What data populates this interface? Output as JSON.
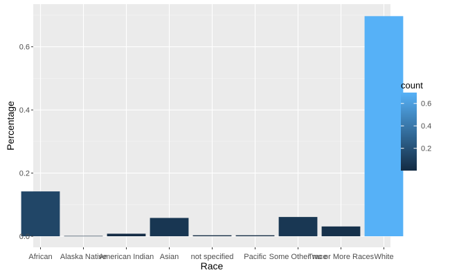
{
  "chart_data": {
    "type": "bar",
    "xlabel": "Race",
    "ylabel": "Percentage",
    "categories": [
      "African",
      "Alaska Native",
      "American Indian",
      "Asian",
      "not specified",
      "Pacific",
      "Some Other race",
      "Two or More Races",
      "White"
    ],
    "values": [
      0.142,
      0.001,
      0.008,
      0.058,
      0.003,
      0.003,
      0.061,
      0.031,
      0.697
    ],
    "ylim": [
      -0.035,
      0.735
    ],
    "yticks": [
      0.0,
      0.2,
      0.4,
      0.6
    ],
    "ytick_labels": [
      "0.0",
      "0.2",
      "0.4",
      "0.6"
    ],
    "grid": true,
    "legend": {
      "title": "count",
      "position": "right",
      "ticks": [
        0.2,
        0.4,
        0.6
      ],
      "tick_labels": [
        "0.2",
        "0.4",
        "0.6"
      ],
      "range": [
        0.001,
        0.697
      ]
    },
    "colors": {
      "low": "#132B43",
      "high": "#56B1F7",
      "panel": "#EBEBEB",
      "grid_major": "#FFFFFF",
      "grid_minor": "#F5F5F5"
    }
  }
}
